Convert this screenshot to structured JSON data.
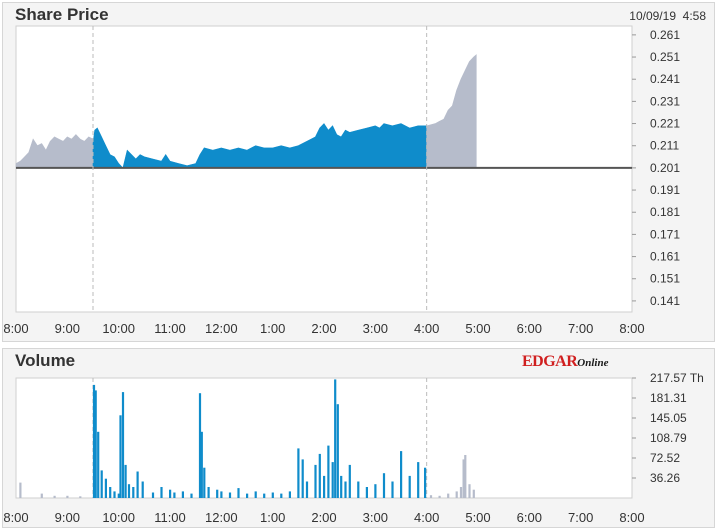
{
  "header": {
    "price_title": "Share Price",
    "volume_title": "Volume",
    "date": "10/09/19",
    "time": "4:58",
    "logo_main": "EDGAR",
    "logo_sub": "Online"
  },
  "chart_data": [
    {
      "type": "area",
      "title": "Share Price",
      "x_ticks": [
        "8:00",
        "9:00",
        "10:00",
        "11:00",
        "12:00",
        "1:00",
        "2:00",
        "3:00",
        "4:00",
        "5:00",
        "6:00",
        "7:00",
        "8:00"
      ],
      "y_ticks": [
        "0.261",
        "0.251",
        "0.241",
        "0.231",
        "0.221",
        "0.211",
        "0.201",
        "0.191",
        "0.181",
        "0.171",
        "0.161",
        "0.151",
        "0.141"
      ],
      "ylim": [
        0.136,
        0.265
      ],
      "baseline": 0.201,
      "market_open": "9:30",
      "market_close": "4:00",
      "colors": {
        "regular": "#0f8ccb",
        "extended": "#b6bccb",
        "baseline": "#555555",
        "gridline": "#bbbbbb"
      },
      "series": [
        {
          "session": "pre-market",
          "points": [
            [
              "8:00",
              0.203
            ],
            [
              "8:05",
              0.204
            ],
            [
              "8:10",
              0.206
            ],
            [
              "8:15",
              0.208
            ],
            [
              "8:20",
              0.214
            ],
            [
              "8:25",
              0.211
            ],
            [
              "8:30",
              0.212
            ],
            [
              "8:35",
              0.209
            ],
            [
              "8:40",
              0.213
            ],
            [
              "8:45",
              0.215
            ],
            [
              "8:50",
              0.214
            ],
            [
              "8:55",
              0.213
            ],
            [
              "9:00",
              0.215
            ],
            [
              "9:05",
              0.214
            ],
            [
              "9:10",
              0.216
            ],
            [
              "9:15",
              0.214
            ],
            [
              "9:20",
              0.213
            ],
            [
              "9:25",
              0.215
            ],
            [
              "9:30",
              0.214
            ]
          ]
        },
        {
          "session": "regular",
          "points": [
            [
              "9:30",
              0.212
            ],
            [
              "9:32",
              0.218
            ],
            [
              "9:35",
              0.219
            ],
            [
              "9:40",
              0.215
            ],
            [
              "9:45",
              0.211
            ],
            [
              "9:50",
              0.207
            ],
            [
              "9:55",
              0.206
            ],
            [
              "10:00",
              0.203
            ],
            [
              "10:05",
              0.201
            ],
            [
              "10:10",
              0.209
            ],
            [
              "10:15",
              0.207
            ],
            [
              "10:20",
              0.205
            ],
            [
              "10:25",
              0.207
            ],
            [
              "10:30",
              0.206
            ],
            [
              "10:40",
              0.205
            ],
            [
              "10:50",
              0.204
            ],
            [
              "10:55",
              0.207
            ],
            [
              "11:00",
              0.204
            ],
            [
              "11:10",
              0.203
            ],
            [
              "11:20",
              0.202
            ],
            [
              "11:30",
              0.203
            ],
            [
              "11:35",
              0.207
            ],
            [
              "11:40",
              0.21
            ],
            [
              "11:50",
              0.209
            ],
            [
              "12:00",
              0.21
            ],
            [
              "12:10",
              0.209
            ],
            [
              "12:20",
              0.21
            ],
            [
              "12:30",
              0.209
            ],
            [
              "12:40",
              0.211
            ],
            [
              "12:50",
              0.21
            ],
            [
              "1:00",
              0.21
            ],
            [
              "1:10",
              0.211
            ],
            [
              "1:20",
              0.21
            ],
            [
              "1:30",
              0.211
            ],
            [
              "1:40",
              0.213
            ],
            [
              "1:50",
              0.215
            ],
            [
              "1:55",
              0.219
            ],
            [
              "2:00",
              0.221
            ],
            [
              "2:05",
              0.218
            ],
            [
              "2:10",
              0.22
            ],
            [
              "2:15",
              0.216
            ],
            [
              "2:20",
              0.215
            ],
            [
              "2:25",
              0.218
            ],
            [
              "2:30",
              0.217
            ],
            [
              "2:40",
              0.218
            ],
            [
              "2:50",
              0.219
            ],
            [
              "3:00",
              0.22
            ],
            [
              "3:05",
              0.219
            ],
            [
              "3:10",
              0.221
            ],
            [
              "3:20",
              0.22
            ],
            [
              "3:30",
              0.221
            ],
            [
              "3:40",
              0.219
            ],
            [
              "3:50",
              0.22
            ],
            [
              "4:00",
              0.22
            ]
          ]
        },
        {
          "session": "after-hours",
          "points": [
            [
              "4:00",
              0.22
            ],
            [
              "4:10",
              0.221
            ],
            [
              "4:15",
              0.222
            ],
            [
              "4:20",
              0.223
            ],
            [
              "4:25",
              0.227
            ],
            [
              "4:30",
              0.229
            ],
            [
              "4:35",
              0.236
            ],
            [
              "4:40",
              0.241
            ],
            [
              "4:45",
              0.245
            ],
            [
              "4:50",
              0.249
            ],
            [
              "4:55",
              0.251
            ],
            [
              "4:58",
              0.252
            ]
          ]
        }
      ]
    },
    {
      "type": "bar",
      "title": "Volume",
      "x_ticks": [
        "8:00",
        "9:00",
        "10:00",
        "11:00",
        "12:00",
        "1:00",
        "2:00",
        "3:00",
        "4:00",
        "5:00",
        "6:00",
        "7:00",
        "8:00"
      ],
      "y_ticks": [
        "217.57 Th",
        "181.31",
        "145.05",
        "108.79",
        "72.52",
        "36.26"
      ],
      "ylim": [
        0,
        217.57
      ],
      "colors": {
        "regular": "#0f8ccb",
        "extended": "#b6bccb"
      },
      "bars": [
        [
          "8:05",
          28,
          "extended"
        ],
        [
          "8:30",
          8,
          "extended"
        ],
        [
          "8:45",
          4,
          "extended"
        ],
        [
          "9:00",
          4,
          "extended"
        ],
        [
          "9:15",
          3,
          "extended"
        ],
        [
          "9:31",
          205,
          "regular"
        ],
        [
          "9:33",
          195,
          "regular"
        ],
        [
          "9:36",
          120,
          "regular"
        ],
        [
          "9:40",
          50,
          "regular"
        ],
        [
          "9:45",
          35,
          "regular"
        ],
        [
          "9:50",
          20,
          "regular"
        ],
        [
          "9:55",
          12,
          "regular"
        ],
        [
          "10:00",
          8,
          "regular"
        ],
        [
          "10:02",
          150,
          "regular"
        ],
        [
          "10:05",
          192,
          "regular"
        ],
        [
          "10:08",
          60,
          "regular"
        ],
        [
          "10:12",
          25,
          "regular"
        ],
        [
          "10:17",
          20,
          "regular"
        ],
        [
          "10:22",
          48,
          "regular"
        ],
        [
          "10:28",
          30,
          "regular"
        ],
        [
          "10:40",
          10,
          "regular"
        ],
        [
          "10:50",
          20,
          "regular"
        ],
        [
          "11:00",
          15,
          "regular"
        ],
        [
          "11:05",
          10,
          "regular"
        ],
        [
          "11:15",
          12,
          "regular"
        ],
        [
          "11:25",
          8,
          "regular"
        ],
        [
          "11:35",
          190,
          "regular"
        ],
        [
          "11:37",
          120,
          "regular"
        ],
        [
          "11:40",
          55,
          "regular"
        ],
        [
          "11:45",
          20,
          "regular"
        ],
        [
          "11:55",
          15,
          "regular"
        ],
        [
          "12:00",
          12,
          "regular"
        ],
        [
          "12:10",
          10,
          "regular"
        ],
        [
          "12:20",
          18,
          "regular"
        ],
        [
          "12:30",
          8,
          "regular"
        ],
        [
          "12:40",
          12,
          "regular"
        ],
        [
          "12:50",
          8,
          "regular"
        ],
        [
          "1:00",
          10,
          "regular"
        ],
        [
          "1:10",
          8,
          "regular"
        ],
        [
          "1:20",
          12,
          "regular"
        ],
        [
          "1:30",
          90,
          "regular"
        ],
        [
          "1:35",
          70,
          "regular"
        ],
        [
          "1:40",
          30,
          "regular"
        ],
        [
          "1:50",
          60,
          "regular"
        ],
        [
          "1:55",
          80,
          "regular"
        ],
        [
          "2:00",
          40,
          "regular"
        ],
        [
          "2:05",
          95,
          "regular"
        ],
        [
          "2:10",
          65,
          "regular"
        ],
        [
          "2:13",
          215,
          "regular"
        ],
        [
          "2:16",
          170,
          "regular"
        ],
        [
          "2:20",
          40,
          "regular"
        ],
        [
          "2:25",
          30,
          "regular"
        ],
        [
          "2:30",
          60,
          "regular"
        ],
        [
          "2:40",
          30,
          "regular"
        ],
        [
          "2:50",
          20,
          "regular"
        ],
        [
          "3:00",
          25,
          "regular"
        ],
        [
          "3:10",
          45,
          "regular"
        ],
        [
          "3:20",
          30,
          "regular"
        ],
        [
          "3:30",
          85,
          "regular"
        ],
        [
          "3:40",
          40,
          "regular"
        ],
        [
          "3:50",
          65,
          "regular"
        ],
        [
          "3:58",
          55,
          "regular"
        ],
        [
          "4:05",
          5,
          "extended"
        ],
        [
          "4:15",
          4,
          "extended"
        ],
        [
          "4:25",
          8,
          "extended"
        ],
        [
          "4:35",
          12,
          "extended"
        ],
        [
          "4:40",
          20,
          "extended"
        ],
        [
          "4:43",
          70,
          "extended"
        ],
        [
          "4:45",
          78,
          "extended"
        ],
        [
          "4:50",
          25,
          "extended"
        ],
        [
          "4:55",
          15,
          "extended"
        ]
      ]
    }
  ]
}
